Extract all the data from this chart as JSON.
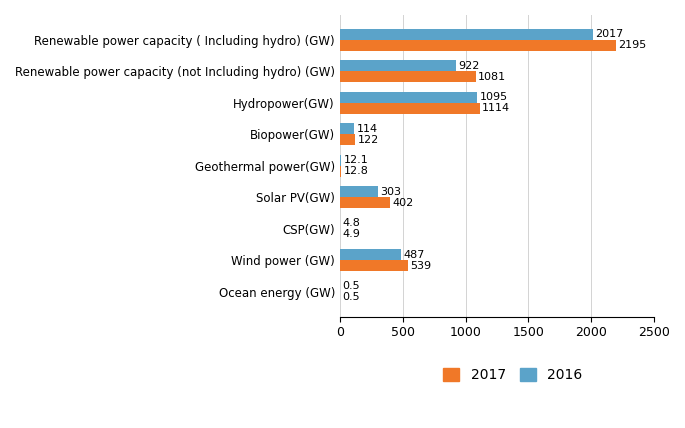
{
  "categories": [
    "Renewable power capacity ( Including hydro) (GW)",
    "Renewable power capacity (not Including hydro) (GW)",
    "Hydropower(GW)",
    "Biopower(GW)",
    "Geothermal power(GW)",
    "Solar PV(GW)",
    "CSP(GW)",
    "Wind power (GW)",
    "Ocean energy (GW)"
  ],
  "values_2017": [
    2195,
    1081,
    1114,
    122,
    12.8,
    402,
    4.9,
    539,
    0.5
  ],
  "values_2016": [
    2017,
    922,
    1095,
    114,
    12.1,
    303,
    4.8,
    487,
    0.5
  ],
  "color_2017": "#F07828",
  "color_2016": "#5BA3C9",
  "bar_height": 0.35,
  "xlim": [
    0,
    2500
  ],
  "xticks": [
    0,
    500,
    1000,
    1500,
    2000,
    2500
  ],
  "legend_labels": [
    "2017",
    "2016"
  ],
  "background_color": "#ffffff",
  "label_fontsize": 8.5,
  "value_fontsize": 8,
  "tick_fontsize": 9
}
